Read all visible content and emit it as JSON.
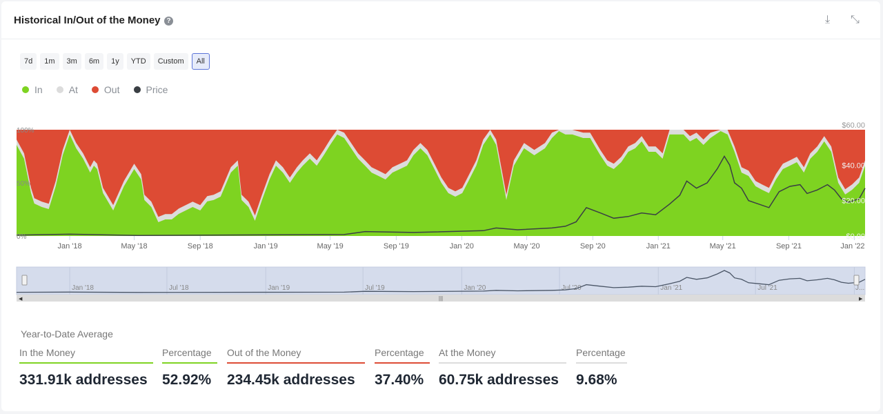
{
  "header": {
    "title": "Historical In/Out of the Money",
    "help_icon": "question-circle-icon",
    "download_icon": "download-icon",
    "collapse_icon": "compress-icon"
  },
  "ranges": [
    {
      "label": "7d"
    },
    {
      "label": "1m"
    },
    {
      "label": "3m"
    },
    {
      "label": "6m"
    },
    {
      "label": "1y"
    },
    {
      "label": "YTD"
    },
    {
      "label": "Custom"
    },
    {
      "label": "All",
      "active": true
    }
  ],
  "legend": [
    {
      "label": "In",
      "color": "#7ed321"
    },
    {
      "label": "At",
      "color": "#dcdcdc"
    },
    {
      "label": "Out",
      "color": "#dd4b34"
    },
    {
      "label": "Price",
      "color": "#3a3f44"
    }
  ],
  "chart_data": {
    "type": "area",
    "stacked": true,
    "percent_axis": {
      "ticks": [
        "0%",
        "50%",
        "100%"
      ],
      "range": [
        0,
        100
      ]
    },
    "price_axis": {
      "ticks": [
        "$0.00",
        "$20.00",
        "$40.00",
        "$60.00"
      ],
      "range": [
        0,
        60
      ]
    },
    "x_ticks": [
      "Jan '18",
      "May '18",
      "Sep '18",
      "Jan '19",
      "May '19",
      "Sep '19",
      "Jan '20",
      "May '20",
      "Sep '20",
      "Jan '21",
      "May '21",
      "Sep '21",
      "Jan '22"
    ],
    "x_tick_dates": [
      "2018-01-01",
      "2018-05-01",
      "2018-09-01",
      "2019-01-01",
      "2019-05-01",
      "2019-09-01",
      "2020-01-01",
      "2020-05-01",
      "2020-09-01",
      "2021-01-01",
      "2021-05-01",
      "2021-09-01",
      "2022-01-01"
    ],
    "x_range": [
      "2017-09-24",
      "2022-01-21"
    ],
    "dates": [
      "2017-09-24",
      "2017-10-08",
      "2017-10-21",
      "2017-10-27",
      "2017-11-10",
      "2017-11-23",
      "2017-12-06",
      "2017-12-19",
      "2018-01-01",
      "2018-01-13",
      "2018-01-26",
      "2018-02-08",
      "2018-02-15",
      "2018-02-21",
      "2018-03-04",
      "2018-03-23",
      "2018-04-12",
      "2018-05-01",
      "2018-05-14",
      "2018-05-20",
      "2018-06-02",
      "2018-06-15",
      "2018-06-28",
      "2018-07-10",
      "2018-07-23",
      "2018-08-05",
      "2018-08-18",
      "2018-09-01",
      "2018-09-14",
      "2018-09-26",
      "2018-10-09",
      "2018-10-28",
      "2018-11-10",
      "2018-11-17",
      "2018-11-30",
      "2018-12-12",
      "2018-12-25",
      "2019-01-08",
      "2019-01-20",
      "2019-02-02",
      "2019-02-15",
      "2019-02-28",
      "2019-03-11",
      "2019-03-24",
      "2019-04-06",
      "2019-04-19",
      "2019-05-01",
      "2019-05-14",
      "2019-05-27",
      "2019-06-09",
      "2019-06-22",
      "2019-07-05",
      "2019-07-17",
      "2019-07-30",
      "2019-08-12",
      "2019-08-25",
      "2019-09-08",
      "2019-09-21",
      "2019-10-03",
      "2019-10-16",
      "2019-10-29",
      "2019-11-11",
      "2019-11-24",
      "2019-12-07",
      "2019-12-20",
      "2020-01-02",
      "2020-01-15",
      "2020-01-28",
      "2020-02-10",
      "2020-02-23",
      "2020-03-05",
      "2020-03-24",
      "2020-04-07",
      "2020-04-26",
      "2020-05-15",
      "2020-06-04",
      "2020-06-17",
      "2020-06-30",
      "2020-07-12",
      "2020-07-25",
      "2020-08-14",
      "2020-08-27",
      "2020-09-15",
      "2020-09-28",
      "2020-10-10",
      "2020-10-24",
      "2020-11-06",
      "2020-11-19",
      "2020-12-01",
      "2020-12-14",
      "2020-12-27",
      "2021-01-09",
      "2021-01-22",
      "2021-02-04",
      "2021-02-17",
      "2021-03-01",
      "2021-03-13",
      "2021-03-26",
      "2021-04-08",
      "2021-04-27",
      "2021-05-10",
      "2021-05-23",
      "2021-06-05",
      "2021-06-18",
      "2021-07-01",
      "2021-07-13",
      "2021-07-26",
      "2021-08-08",
      "2021-08-21",
      "2021-09-03",
      "2021-09-16",
      "2021-09-29",
      "2021-10-11",
      "2021-10-24",
      "2021-11-06",
      "2021-11-19",
      "2021-12-02",
      "2021-12-15",
      "2021-12-28",
      "2022-01-10",
      "2022-01-21"
    ],
    "series": [
      {
        "name": "In",
        "color": "#7ed321",
        "values": [
          85.7,
          72.7,
          40.3,
          30.5,
          27.3,
          25.3,
          46.8,
          76,
          95.5,
          82.5,
          72.7,
          59.7,
          66.2,
          63,
          40.3,
          24,
          46.8,
          63,
          53.2,
          33.8,
          27.3,
          13,
          15.6,
          15.6,
          20.8,
          24,
          27.3,
          24,
          32.5,
          33.8,
          37,
          59.7,
          66.2,
          33.8,
          27.3,
          14.3,
          33.8,
          53.2,
          66.2,
          59.7,
          50,
          59.7,
          66.2,
          72.7,
          66.2,
          76,
          85.7,
          95.5,
          92.2,
          82.5,
          72.7,
          66.2,
          59.7,
          56.5,
          53.2,
          59.7,
          63,
          66.2,
          76,
          82.5,
          76,
          63,
          50,
          40.3,
          37,
          40.3,
          53.2,
          66.2,
          85.7,
          95.5,
          85.7,
          33.8,
          66.2,
          82.5,
          76,
          82.5,
          92.2,
          98.7,
          95.5,
          95.5,
          92.2,
          92.2,
          76,
          66.2,
          63,
          69.5,
          79.2,
          82.5,
          89,
          79.2,
          79.2,
          72.7,
          95.5,
          95.5,
          95.5,
          89,
          92.2,
          85.7,
          92.2,
          98.7,
          95.5,
          79.2,
          59.7,
          56.5,
          46.8,
          43.5,
          40.3,
          53.2,
          63,
          66.2,
          69.5,
          59.7,
          72.7,
          79.2,
          89,
          79.2,
          50,
          39,
          43.5,
          50,
          66.2
        ]
      },
      {
        "name": "At",
        "color": "#dcdcdc",
        "values_default": 5
      },
      {
        "name": "Out",
        "color": "#dd4b34",
        "note_remainder": true
      }
    ],
    "price": {
      "name": "Price",
      "color": "#3a3f44",
      "dates": [
        "2017-09-24",
        "2018-01-01",
        "2018-05-08",
        "2019-05-27",
        "2019-07-05",
        "2019-10-03",
        "2020-02-10",
        "2020-03-05",
        "2020-04-14",
        "2020-06-17",
        "2020-07-12",
        "2020-08-01",
        "2020-08-20",
        "2020-09-15",
        "2020-10-10",
        "2020-11-06",
        "2020-12-01",
        "2020-12-27",
        "2021-01-22",
        "2021-02-10",
        "2021-02-23",
        "2021-03-13",
        "2021-04-02",
        "2021-04-21",
        "2021-05-04",
        "2021-05-14",
        "2021-05-23",
        "2021-06-05",
        "2021-06-18",
        "2021-07-07",
        "2021-07-26",
        "2021-08-14",
        "2021-09-03",
        "2021-09-22",
        "2021-10-05",
        "2021-10-24",
        "2021-11-12",
        "2021-11-25",
        "2021-12-08",
        "2021-12-21",
        "2022-01-10",
        "2022-01-21"
      ],
      "values": [
        0.5,
        1.0,
        0.3,
        0.8,
        2.5,
        2,
        3,
        4.5,
        3.5,
        4.5,
        5.5,
        8,
        16,
        13,
        10,
        11,
        13,
        12,
        18,
        23,
        31,
        27,
        30,
        38,
        45,
        40,
        30,
        27,
        20,
        18,
        16,
        25,
        28,
        29,
        24,
        26,
        29,
        26,
        21,
        19,
        21,
        27
      ]
    },
    "navigator": {
      "ticks": [
        "Jan '18",
        "Jul '18",
        "Jan '19",
        "Jul '19",
        "Jan '20",
        "Jul '20",
        "Jan '21",
        "Jul '21",
        "J..."
      ],
      "tick_dates": [
        "2018-01-01",
        "2018-07-01",
        "2019-01-01",
        "2019-07-01",
        "2020-01-01",
        "2020-07-01",
        "2021-01-01",
        "2021-07-01",
        "2022-01-01"
      ]
    }
  },
  "summary": {
    "title": "Year-to-Date Average",
    "stats": [
      {
        "label": "In the Money",
        "value": "331.91k addresses",
        "color": "#7ed321"
      },
      {
        "label": "Percentage",
        "value": "52.92%",
        "color": "#7ed321"
      },
      {
        "label": "Out of the Money",
        "value": "234.45k addresses",
        "color": "#dd4b34"
      },
      {
        "label": "Percentage",
        "value": "37.40%",
        "color": "#dd4b34"
      },
      {
        "label": "At the Money",
        "value": "60.75k addresses",
        "color": "#dcdcdc"
      },
      {
        "label": "Percentage",
        "value": "9.68%",
        "color": "#dcdcdc"
      }
    ]
  }
}
